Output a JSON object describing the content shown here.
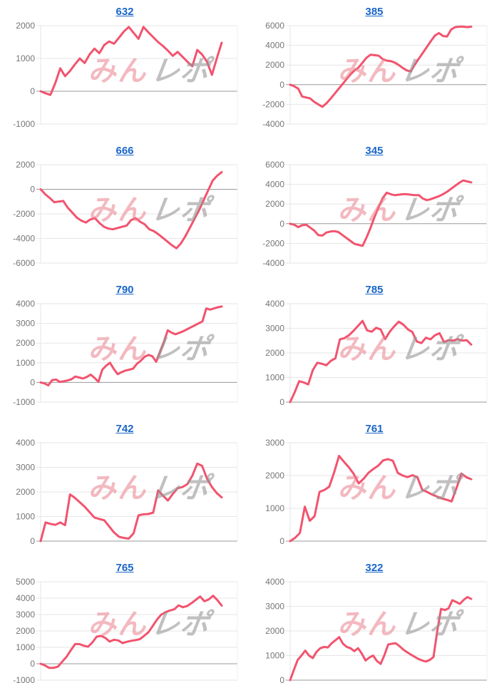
{
  "style": {
    "line_color": "#f2536e",
    "grid_color": "#e6e6e6",
    "zero_line_color": "#999999",
    "label_color": "#757575",
    "title_color": "#1a66c8",
    "watermark_pink": "rgba(233,128,141,0.55)",
    "watermark_gray": "rgba(150,150,150,0.60)",
    "background": "#ffffff"
  },
  "watermark": {
    "part1": "みん",
    "part2": "レポ"
  },
  "chart_data": [
    {
      "type": "line",
      "title": "632",
      "xlabel": "",
      "ylabel": "",
      "grid": true,
      "legend": "none",
      "ylim": [
        -1000,
        2000
      ],
      "yticks": [
        2000,
        1000,
        0,
        -1000
      ],
      "values": [
        0,
        -60,
        -110,
        250,
        700,
        460,
        620,
        820,
        1000,
        860,
        1120,
        1300,
        1160,
        1410,
        1520,
        1450,
        1630,
        1820,
        1960,
        1780,
        1600,
        1960,
        1800,
        1650,
        1500,
        1380,
        1240,
        1080,
        1200,
        1050,
        900,
        760,
        1260,
        1120,
        900,
        500,
        1000,
        1480
      ]
    },
    {
      "type": "line",
      "title": "385",
      "xlabel": "",
      "ylabel": "",
      "grid": true,
      "legend": "none",
      "ylim": [
        -4000,
        6000
      ],
      "yticks": [
        6000,
        4000,
        2000,
        0,
        -2000,
        -4000
      ],
      "values": [
        0,
        -150,
        -400,
        -1200,
        -1300,
        -1400,
        -1750,
        -2000,
        -2250,
        -1900,
        -1450,
        -950,
        -450,
        50,
        550,
        1050,
        1450,
        1750,
        2250,
        2750,
        3050,
        3000,
        2950,
        2600,
        2450,
        2400,
        2250,
        2000,
        1700,
        1450,
        1350,
        2050,
        2650,
        3250,
        3850,
        4450,
        5000,
        5250,
        4950,
        4900,
        5600,
        5850,
        5900,
        5900,
        5850,
        5900
      ]
    },
    {
      "type": "line",
      "title": "666",
      "xlabel": "",
      "ylabel": "",
      "grid": true,
      "legend": "none",
      "ylim": [
        -6000,
        2000
      ],
      "yticks": [
        2000,
        0,
        -2000,
        -4000,
        -6000
      ],
      "values": [
        0,
        -400,
        -700,
        -1050,
        -1000,
        -950,
        -1500,
        -1900,
        -2300,
        -2550,
        -2700,
        -2450,
        -2350,
        -2750,
        -3050,
        -3200,
        -3250,
        -3150,
        -3050,
        -2950,
        -2500,
        -2350,
        -2650,
        -2850,
        -3250,
        -3400,
        -3650,
        -3950,
        -4250,
        -4550,
        -4800,
        -4400,
        -3800,
        -3100,
        -2400,
        -1700,
        -900,
        -100,
        700,
        1100,
        1400
      ]
    },
    {
      "type": "line",
      "title": "345",
      "xlabel": "",
      "ylabel": "",
      "grid": true,
      "legend": "none",
      "ylim": [
        -4000,
        6000
      ],
      "yticks": [
        6000,
        4000,
        2000,
        0,
        -2000,
        -4000
      ],
      "values": [
        0,
        -100,
        -350,
        -150,
        -100,
        -400,
        -700,
        -1150,
        -1200,
        -900,
        -800,
        -750,
        -850,
        -1150,
        -1450,
        -1750,
        -2050,
        -2150,
        -2250,
        -1400,
        -400,
        700,
        1700,
        2600,
        3150,
        3000,
        2900,
        2950,
        3000,
        3000,
        2950,
        2900,
        2900,
        2550,
        2400,
        2500,
        2650,
        2800,
        3000,
        3250,
        3550,
        3850,
        4150,
        4400,
        4300,
        4200
      ]
    },
    {
      "type": "line",
      "title": "790",
      "xlabel": "",
      "ylabel": "",
      "grid": true,
      "legend": "none",
      "ylim": [
        -1000,
        4000
      ],
      "yticks": [
        4000,
        3000,
        2000,
        1000,
        0,
        -1000
      ],
      "values": [
        0,
        -50,
        -150,
        120,
        150,
        20,
        60,
        100,
        160,
        300,
        250,
        200,
        280,
        400,
        230,
        30,
        650,
        850,
        1000,
        680,
        420,
        520,
        600,
        650,
        700,
        950,
        1100,
        1300,
        1400,
        1330,
        1050,
        1550,
        2050,
        2650,
        2530,
        2450,
        2520,
        2600,
        2700,
        2800,
        2900,
        3000,
        3100,
        3760,
        3700,
        3760,
        3820,
        3860
      ]
    },
    {
      "type": "line",
      "title": "785",
      "xlabel": "",
      "ylabel": "",
      "grid": true,
      "legend": "none",
      "ylim": [
        0,
        4000
      ],
      "yticks": [
        4000,
        3000,
        2000,
        1000,
        0
      ],
      "values": [
        0,
        400,
        850,
        800,
        720,
        1300,
        1600,
        1560,
        1500,
        1680,
        1780,
        2550,
        2600,
        2720,
        2900,
        3100,
        3300,
        2920,
        2860,
        3020,
        2950,
        2560,
        2860,
        3080,
        3270,
        3150,
        2960,
        2850,
        2460,
        2400,
        2620,
        2550,
        2720,
        2800,
        2440,
        2520,
        2500,
        2560,
        2500,
        2520,
        2340
      ]
    },
    {
      "type": "line",
      "title": "742",
      "xlabel": "",
      "ylabel": "",
      "grid": true,
      "legend": "none",
      "ylim": [
        0,
        4000
      ],
      "yticks": [
        4000,
        3000,
        2000,
        1000,
        0
      ],
      "values": [
        0,
        760,
        700,
        660,
        760,
        650,
        1900,
        1760,
        1580,
        1400,
        1180,
        960,
        900,
        850,
        600,
        350,
        180,
        130,
        100,
        320,
        1050,
        1090,
        1100,
        1160,
        2060,
        1850,
        1650,
        1920,
        2150,
        2200,
        2320,
        2660,
        3150,
        3060,
        2540,
        2200,
        1950,
        1780
      ]
    },
    {
      "type": "line",
      "title": "761",
      "xlabel": "",
      "ylabel": "",
      "grid": true,
      "legend": "none",
      "ylim": [
        0,
        3000
      ],
      "yticks": [
        3000,
        2000,
        1000,
        0
      ],
      "values": [
        0,
        100,
        250,
        1050,
        620,
        760,
        1500,
        1560,
        1660,
        2100,
        2600,
        2420,
        2250,
        2050,
        1760,
        1900,
        2080,
        2200,
        2300,
        2460,
        2500,
        2450,
        2080,
        2000,
        1950,
        2010,
        1950,
        1560,
        1500,
        1420,
        1360,
        1300,
        1260,
        1210,
        1620,
        2060,
        1950,
        1890
      ]
    },
    {
      "type": "line",
      "title": "765",
      "xlabel": "",
      "ylabel": "",
      "grid": true,
      "legend": "none",
      "ylim": [
        -1000,
        5000
      ],
      "yticks": [
        5000,
        4000,
        3000,
        2000,
        1000,
        0,
        -1000
      ],
      "values": [
        0,
        -100,
        -250,
        -250,
        -180,
        120,
        420,
        820,
        1200,
        1200,
        1100,
        1040,
        1300,
        1650,
        1700,
        1580,
        1350,
        1460,
        1420,
        1260,
        1340,
        1400,
        1440,
        1500,
        1700,
        1920,
        2300,
        2700,
        3000,
        3150,
        3250,
        3320,
        3560,
        3450,
        3520,
        3700,
        3900,
        4100,
        3810,
        3920,
        4150,
        3880,
        3550
      ]
    },
    {
      "type": "line",
      "title": "322",
      "xlabel": "",
      "ylabel": "",
      "grid": true,
      "legend": "none",
      "ylim": [
        0,
        4000
      ],
      "yticks": [
        4000,
        3000,
        2000,
        1000,
        0
      ],
      "values": [
        0,
        420,
        820,
        1000,
        1200,
        1000,
        900,
        1150,
        1300,
        1350,
        1330,
        1500,
        1620,
        1750,
        1480,
        1350,
        1300,
        1180,
        1300,
        1080,
        800,
        920,
        1000,
        780,
        660,
        1020,
        1450,
        1480,
        1500,
        1380,
        1240,
        1140,
        1040,
        950,
        860,
        800,
        760,
        820,
        940,
        2000,
        2900,
        2850,
        2920,
        3250,
        3180,
        3100,
        3260,
        3380,
        3300
      ]
    }
  ]
}
